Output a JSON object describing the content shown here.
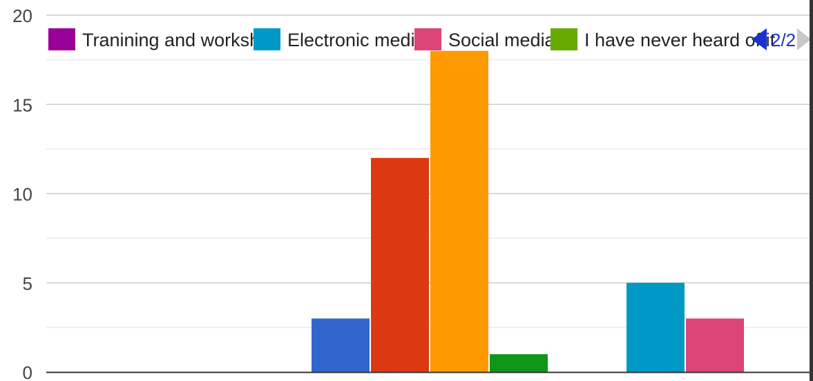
{
  "chart_data": {
    "type": "bar",
    "y_ticks": [
      "0",
      "5",
      "10",
      "15",
      "20"
    ],
    "ylim": [
      0,
      20
    ],
    "grid": true,
    "legend_position": "top",
    "legend": {
      "entries": [
        {
          "label": "Tranining and worksh...",
          "color": "#990099"
        },
        {
          "label": "Electronic media",
          "color": "#0099c6"
        },
        {
          "label": "Social media",
          "color": "#dd4477"
        },
        {
          "label": "I have never heard of it",
          "color": "#66aa00"
        }
      ],
      "page": "2/2"
    },
    "groups": [
      {
        "bars": []
      },
      {
        "bars": [
          {
            "value": 3,
            "color": "#3366cc"
          },
          {
            "value": 12,
            "color": "#dc3912"
          },
          {
            "value": 18,
            "color": "#ff9900"
          },
          {
            "value": 1,
            "color": "#109618"
          }
        ]
      },
      {
        "bars": [
          {
            "value": 5,
            "color": "#0099c6"
          },
          {
            "value": 3,
            "color": "#dd4477"
          }
        ]
      }
    ]
  }
}
